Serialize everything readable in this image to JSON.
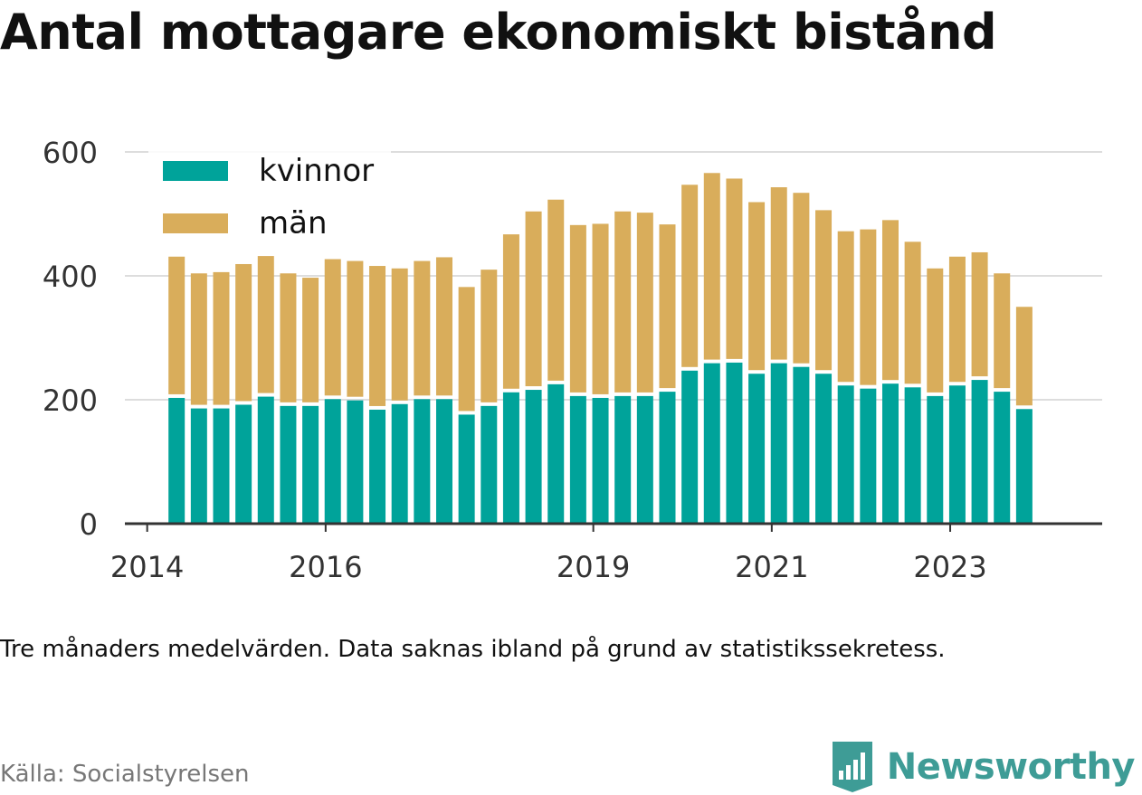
{
  "title": "Antal mottagare ekonomiskt bistånd",
  "note": "Tre månaders medelvärden. Data saknas ibland på grund av statistikssekretess.",
  "source": "Källa: Socialstyrelsen",
  "brand": {
    "name": "Newsworthy",
    "icon": "newsworthy-logo-icon",
    "color": "#3e9c96"
  },
  "colors": {
    "kvinnor": "#00a39a",
    "man": "#d9ad5b",
    "grid": "#dddddd",
    "axis": "#333333"
  },
  "chart_data": {
    "type": "bar",
    "stacked": true,
    "title": "Antal mottagare ekonomiskt bistånd",
    "xlabel": "",
    "ylabel": "",
    "ylim": [
      0,
      600
    ],
    "yticks": [
      "0",
      "200",
      "400",
      "600"
    ],
    "xtick_labels": [
      {
        "label": "2014",
        "x": 2014.0
      },
      {
        "label": "2016",
        "x": 2016.0
      },
      {
        "label": "2019",
        "x": 2019.0
      },
      {
        "label": "2021",
        "x": 2021.0
      },
      {
        "label": "2023",
        "x": 2023.0
      }
    ],
    "grid": true,
    "legend": "top-left",
    "x": [
      2014.33,
      2014.58,
      2014.83,
      2015.08,
      2015.33,
      2015.58,
      2015.83,
      2016.08,
      2016.33,
      2016.58,
      2016.83,
      2017.08,
      2017.33,
      2017.58,
      2017.83,
      2018.08,
      2018.33,
      2018.58,
      2018.83,
      2019.08,
      2019.33,
      2019.58,
      2019.83,
      2020.08,
      2020.33,
      2020.58,
      2020.83,
      2021.08,
      2021.33,
      2021.58,
      2021.83,
      2022.08,
      2022.33,
      2022.58,
      2022.83,
      2023.08,
      2023.33,
      2023.58,
      2023.83
    ],
    "series": [
      {
        "name": "kvinnor",
        "values": [
          203,
          186,
          186,
          192,
          205,
          190,
          190,
          201,
          199,
          184,
          193,
          201,
          201,
          176,
          190,
          212,
          216,
          225,
          206,
          203,
          206,
          206,
          213,
          247,
          259,
          260,
          242,
          259,
          253,
          242,
          223,
          218,
          226,
          220,
          206,
          223,
          232,
          213,
          185
        ]
      },
      {
        "name": "män",
        "values": [
          228,
          218,
          220,
          227,
          227,
          214,
          207,
          226,
          225,
          232,
          219,
          223,
          229,
          206,
          220,
          255,
          288,
          298,
          276,
          281,
          298,
          296,
          270,
          300,
          307,
          297,
          277,
          284,
          281,
          264,
          249,
          257,
          264,
          235,
          206,
          208,
          206,
          191,
          165
        ]
      }
    ]
  }
}
